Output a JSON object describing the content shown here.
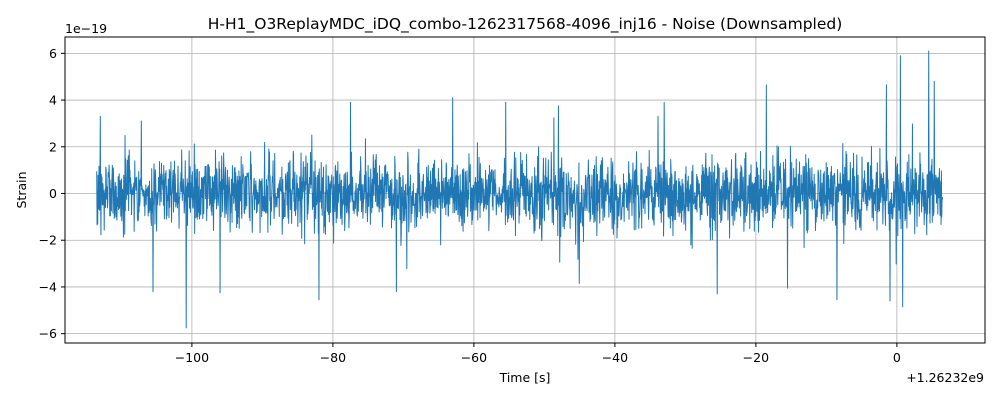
{
  "chart_data": {
    "type": "line",
    "title": "H-H1_O3ReplayMDC_iDQ_combo-1262317568-4096_inj16 - Noise (Downsampled)",
    "xlabel": "Time [s]",
    "ylabel": "Strain",
    "x_offset_label": "+1.26232e9",
    "y_scale_label": "1e−19",
    "xlim": [
      -118,
      12.5
    ],
    "ylim": [
      -6.4,
      6.7
    ],
    "x_ticks": [
      -100,
      -80,
      -60,
      -40,
      -20,
      0
    ],
    "x_tick_labels": [
      "−100",
      "−80",
      "−60",
      "−40",
      "−20",
      "0"
    ],
    "y_ticks": [
      -6,
      -4,
      -2,
      0,
      2,
      4,
      6
    ],
    "y_tick_labels": [
      "−6",
      "−4",
      "−2",
      "0",
      "2",
      "4",
      "6"
    ],
    "grid": true,
    "series": [
      {
        "color": "#1f77b4",
        "x_range": [
          -113.5,
          6.5
        ],
        "noise_amplitude_typical": 1.2,
        "peaks": [
          {
            "x": -113.0,
            "y": 3.3
          },
          {
            "x": -105.5,
            "y": -4.2
          },
          {
            "x": -100.8,
            "y": -5.75
          },
          {
            "x": -96.0,
            "y": -4.25
          },
          {
            "x": -82.0,
            "y": -4.55
          },
          {
            "x": -77.5,
            "y": 3.9
          },
          {
            "x": -71.0,
            "y": -4.2
          },
          {
            "x": -63.0,
            "y": 4.1
          },
          {
            "x": -55.5,
            "y": 3.9
          },
          {
            "x": -48.0,
            "y": 3.75
          },
          {
            "x": -33.0,
            "y": 3.9
          },
          {
            "x": -25.5,
            "y": -4.3
          },
          {
            "x": -18.5,
            "y": 4.65
          },
          {
            "x": -15.5,
            "y": -4.05
          },
          {
            "x": -8.5,
            "y": -4.55
          },
          {
            "x": -1.5,
            "y": 4.65
          },
          {
            "x": -1.0,
            "y": -4.6
          },
          {
            "x": 0.5,
            "y": 5.9
          },
          {
            "x": 0.8,
            "y": -4.85
          },
          {
            "x": 4.5,
            "y": 6.1
          },
          {
            "x": 5.3,
            "y": 4.8
          }
        ]
      }
    ]
  }
}
